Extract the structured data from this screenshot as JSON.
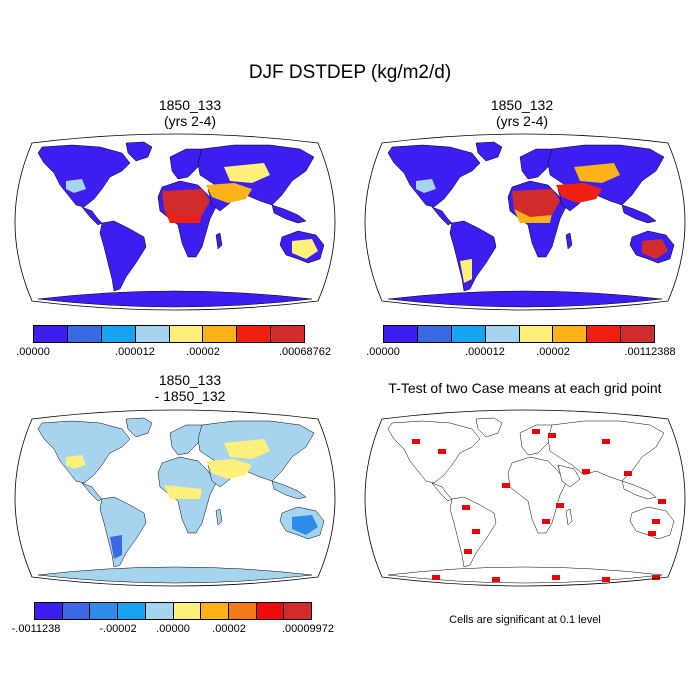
{
  "title": "DJF DSTDEP (kg/m2/d)",
  "panels": [
    {
      "id": "case1",
      "title": "1850_133\n(yrs 2-4)",
      "colorbar": {
        "colors": [
          "#3d1ef0",
          "#3a69e3",
          "#16a4f2",
          "#a6d4ef",
          "#fdf17c",
          "#fcb31a",
          "#f02010",
          "#d22b2b"
        ],
        "labels": [
          ".00000",
          ".000012",
          ".00002",
          ".00068762"
        ]
      }
    },
    {
      "id": "case2",
      "title": "1850_132\n(yrs 2-4)",
      "colorbar": {
        "colors": [
          "#3d1ef0",
          "#3a69e3",
          "#16a4f2",
          "#a6d4ef",
          "#fdf17c",
          "#fcb31a",
          "#f02010",
          "#d22b2b"
        ],
        "labels": [
          ".00000",
          ".000012",
          ".00002",
          ".00112388"
        ]
      }
    },
    {
      "id": "diff",
      "title": "1850_133\n- 1850_132",
      "colorbar": {
        "colors": [
          "#3d1ef0",
          "#3a69e3",
          "#2f8be8",
          "#16a4f2",
          "#a6d4ef",
          "#fdf17c",
          "#fcb31a",
          "#f27a18",
          "#f00a0a",
          "#d22b2b"
        ],
        "labels": [
          "-.0011238",
          "-.00002",
          ".00000",
          ".00002",
          ".00009972"
        ]
      }
    },
    {
      "id": "ttest",
      "title": "T-Test of two Case means at each grid point",
      "note": "Cells are significant at 0.1 level"
    }
  ],
  "colors": {
    "ocean": "#ffffff",
    "outline": "#000000",
    "low": "#3d1ef0",
    "diff_base": "#a6d4ef",
    "diff_pos": "#fdf17c",
    "significant": "#e8000b"
  }
}
